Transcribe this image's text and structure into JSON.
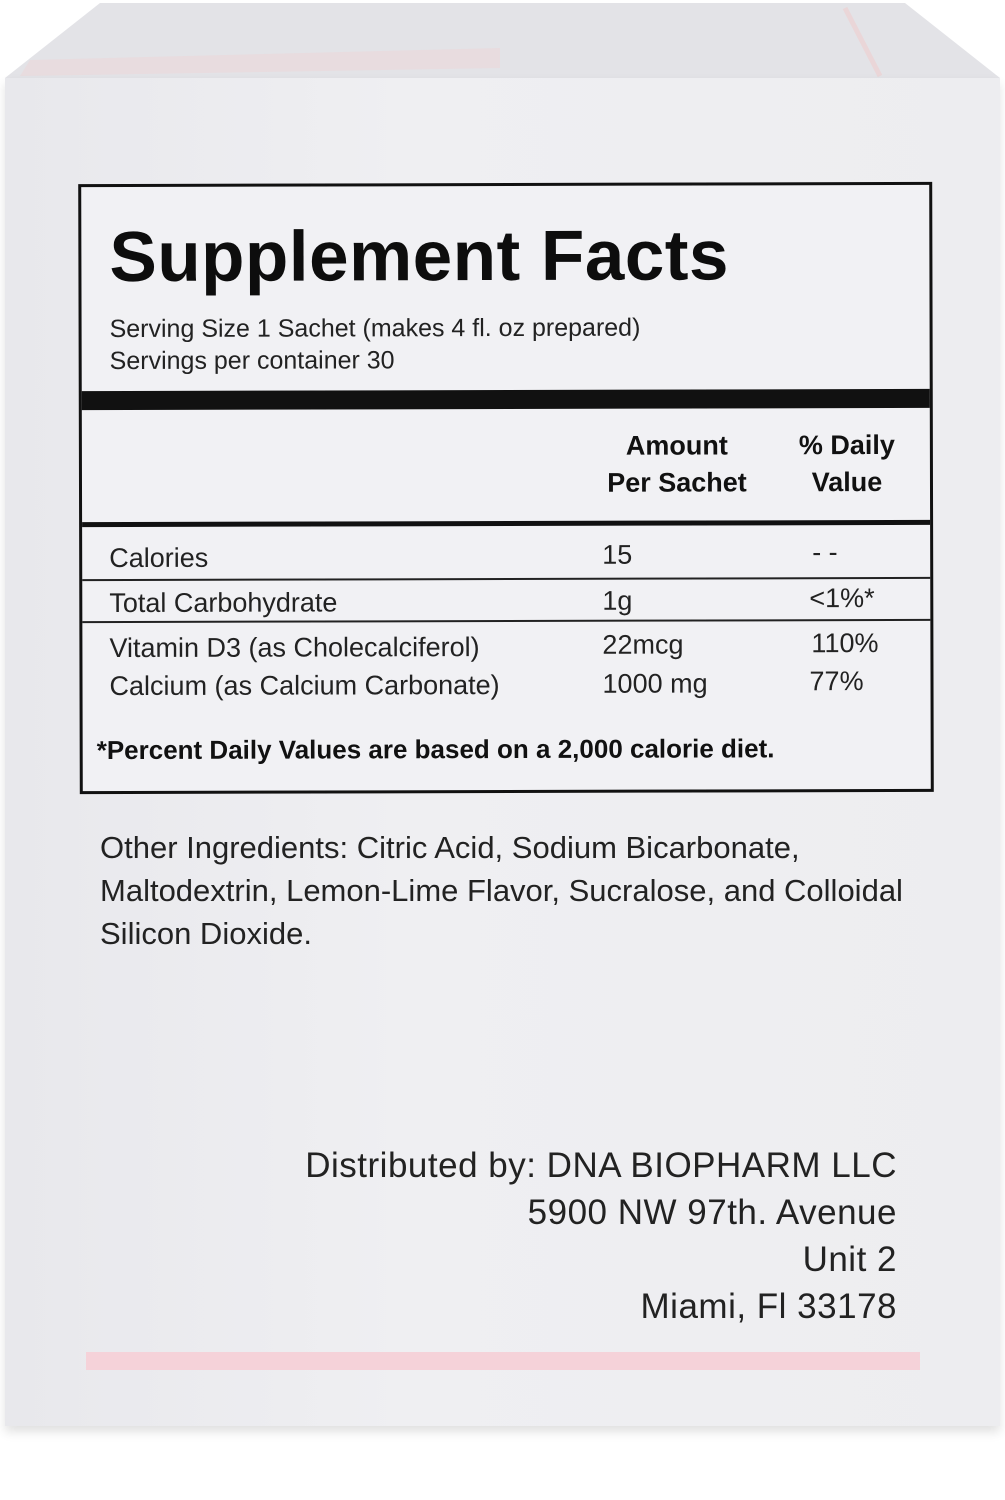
{
  "supplement_facts": {
    "title": "Supplement Facts",
    "serving_size": "Serving Size 1 Sachet (makes 4 fl. oz prepared)",
    "servings_per_container": "Servings per container 30",
    "headers": {
      "amount": "Amount\nPer Sachet",
      "daily_value": "% Daily\nValue"
    },
    "rows": [
      {
        "name": "Calories",
        "amount": "15",
        "dv": "- -"
      },
      {
        "name": "Total Carbohydrate",
        "amount": "1g",
        "dv": "<1%*"
      },
      {
        "name": "Vitamin D3 (as Cholecalciferol)",
        "amount": "22mcg",
        "dv": "110%"
      },
      {
        "name": "Calcium (as Calcium Carbonate)",
        "amount": "1000 mg",
        "dv": "77%"
      }
    ],
    "footnote": "*Percent Daily Values are based on a 2,000 calorie diet."
  },
  "other_ingredients": "Other Ingredients: Citric Acid, Sodium Bicarbonate, Maltodextrin, Lemon-Lime Flavor, Sucralose, and Colloidal Silicon Dioxide.",
  "distributor": {
    "line1": "Distributed by: DNA BIOPHARM LLC",
    "line2": "5900 NW 97th. Avenue",
    "line3": "Unit 2",
    "line4": "Miami, Fl 33178"
  },
  "colors": {
    "accent_pink": "#f5d2d9",
    "box_face": "#ececef",
    "label_border": "#111111"
  }
}
